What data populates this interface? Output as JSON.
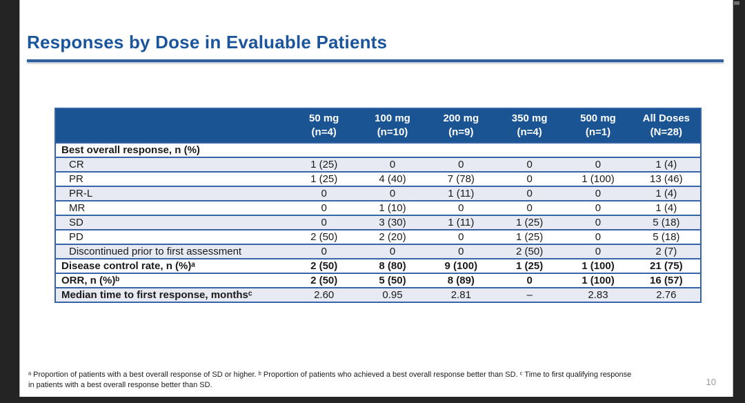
{
  "slide": {
    "title": "Responses by Dose in Evaluable Patients",
    "page_number": "10",
    "footnote_line1": "ᵃ Proportion of patients with a best overall response of SD or higher. ᵇ Proportion of patients who achieved a best overall response better than SD. ᶜ Time to first qualifying response",
    "footnote_line2": "in patients with a best overall response better than SD."
  },
  "table": {
    "columns": [
      "",
      "50 mg\n(n=4)",
      "100 mg\n(n=10)",
      "200 mg\n(n=9)",
      "350 mg\n(n=4)",
      "500 mg\n(n=1)",
      "All Doses\n(N=28)"
    ],
    "rows": [
      {
        "label": "Best overall response, n (%)",
        "values": [
          "",
          "",
          "",
          "",
          "",
          ""
        ],
        "bold_label": true,
        "bold_values": false,
        "sub": false,
        "shaded": false
      },
      {
        "label": "CR",
        "values": [
          "1 (25)",
          "0",
          "0",
          "0",
          "0",
          "1 (4)"
        ],
        "bold_label": false,
        "bold_values": false,
        "sub": true,
        "shaded": true
      },
      {
        "label": "PR",
        "values": [
          "1 (25)",
          "4 (40)",
          "7 (78)",
          "0",
          "1 (100)",
          "13 (46)"
        ],
        "bold_label": false,
        "bold_values": false,
        "sub": true,
        "shaded": false
      },
      {
        "label": "PR-L",
        "values": [
          "0",
          "0",
          "1 (11)",
          "0",
          "0",
          "1 (4)"
        ],
        "bold_label": false,
        "bold_values": false,
        "sub": true,
        "shaded": true
      },
      {
        "label": "MR",
        "values": [
          "0",
          "1 (10)",
          "0",
          "0",
          "0",
          "1 (4)"
        ],
        "bold_label": false,
        "bold_values": false,
        "sub": true,
        "shaded": false
      },
      {
        "label": "SD",
        "values": [
          "0",
          "3 (30)",
          "1 (11)",
          "1 (25)",
          "0",
          "5 (18)"
        ],
        "bold_label": false,
        "bold_values": false,
        "sub": true,
        "shaded": true
      },
      {
        "label": "PD",
        "values": [
          "2 (50)",
          "2 (20)",
          "0",
          "1 (25)",
          "0",
          "5 (18)"
        ],
        "bold_label": false,
        "bold_values": false,
        "sub": true,
        "shaded": false
      },
      {
        "label": "Discontinued prior to first assessment",
        "values": [
          "0",
          "0",
          "0",
          "2 (50)",
          "0",
          "2 (7)"
        ],
        "bold_label": false,
        "bold_values": false,
        "sub": true,
        "shaded": true
      },
      {
        "label": "Disease control rate, n (%)ᵃ",
        "values": [
          "2 (50)",
          "8 (80)",
          "9 (100)",
          "1 (25)",
          "1 (100)",
          "21 (75)"
        ],
        "bold_label": true,
        "bold_values": true,
        "sub": false,
        "shaded": false
      },
      {
        "label": "ORR, n (%)ᵇ",
        "values": [
          "2 (50)",
          "5 (50)",
          "8 (89)",
          "0",
          "1 (100)",
          "16 (57)"
        ],
        "bold_label": true,
        "bold_values": true,
        "sub": false,
        "shaded": false
      },
      {
        "label": "Median time to first response, monthsᶜ",
        "values": [
          "2.60",
          "0.95",
          "2.81",
          "–",
          "2.83",
          "2.76"
        ],
        "bold_label": true,
        "bold_values": false,
        "sub": false,
        "shaded": true
      }
    ]
  },
  "colors": {
    "header_bg": "#1A5493",
    "shaded_row_bg": "#E7EAF2",
    "table_border": "#3565A8",
    "title": "#1B559B",
    "title_rule": "#2F5F9E",
    "page_number": "#9A9A9A"
  }
}
